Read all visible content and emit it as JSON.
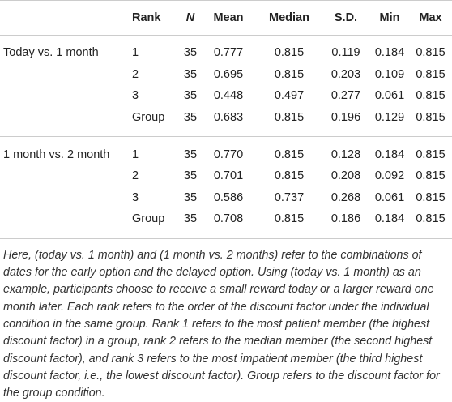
{
  "table": {
    "header": [
      "",
      "Rank",
      "N",
      "Mean",
      "Median",
      "S.D.",
      "Min",
      "Max"
    ],
    "groups": [
      {
        "label": "Today vs. 1 month",
        "rows": [
          [
            "1",
            "35",
            "0.777",
            "0.815",
            "0.119",
            "0.184",
            "0.815"
          ],
          [
            "2",
            "35",
            "0.695",
            "0.815",
            "0.203",
            "0.109",
            "0.815"
          ],
          [
            "3",
            "35",
            "0.448",
            "0.497",
            "0.277",
            "0.061",
            "0.815"
          ],
          [
            "Group",
            "35",
            "0.683",
            "0.815",
            "0.196",
            "0.129",
            "0.815"
          ]
        ]
      },
      {
        "label": "1 month vs. 2 month",
        "rows": [
          [
            "1",
            "35",
            "0.770",
            "0.815",
            "0.128",
            "0.184",
            "0.815"
          ],
          [
            "2",
            "35",
            "0.701",
            "0.815",
            "0.208",
            "0.092",
            "0.815"
          ],
          [
            "3",
            "35",
            "0.586",
            "0.737",
            "0.268",
            "0.061",
            "0.815"
          ],
          [
            "Group",
            "35",
            "0.708",
            "0.815",
            "0.186",
            "0.184",
            "0.815"
          ]
        ]
      }
    ]
  },
  "note": "Here, (today vs. 1 month) and (1 month vs. 2 months) refer to the combinations of dates for the early option and the delayed option. Using (today vs. 1 month) as an example, participants choose to receive a small reward today or a larger reward one month later. Each rank refers to the order of the discount factor under the individual condition in the same group. Rank 1 refers to the most patient member (the highest discount factor) in a group, rank 2 refers to the median member (the second highest discount factor), and rank 3 refers to the most impatient member (the third highest discount factor, i.e., the lowest discount factor). Group refers to the discount factor for the group condition."
}
